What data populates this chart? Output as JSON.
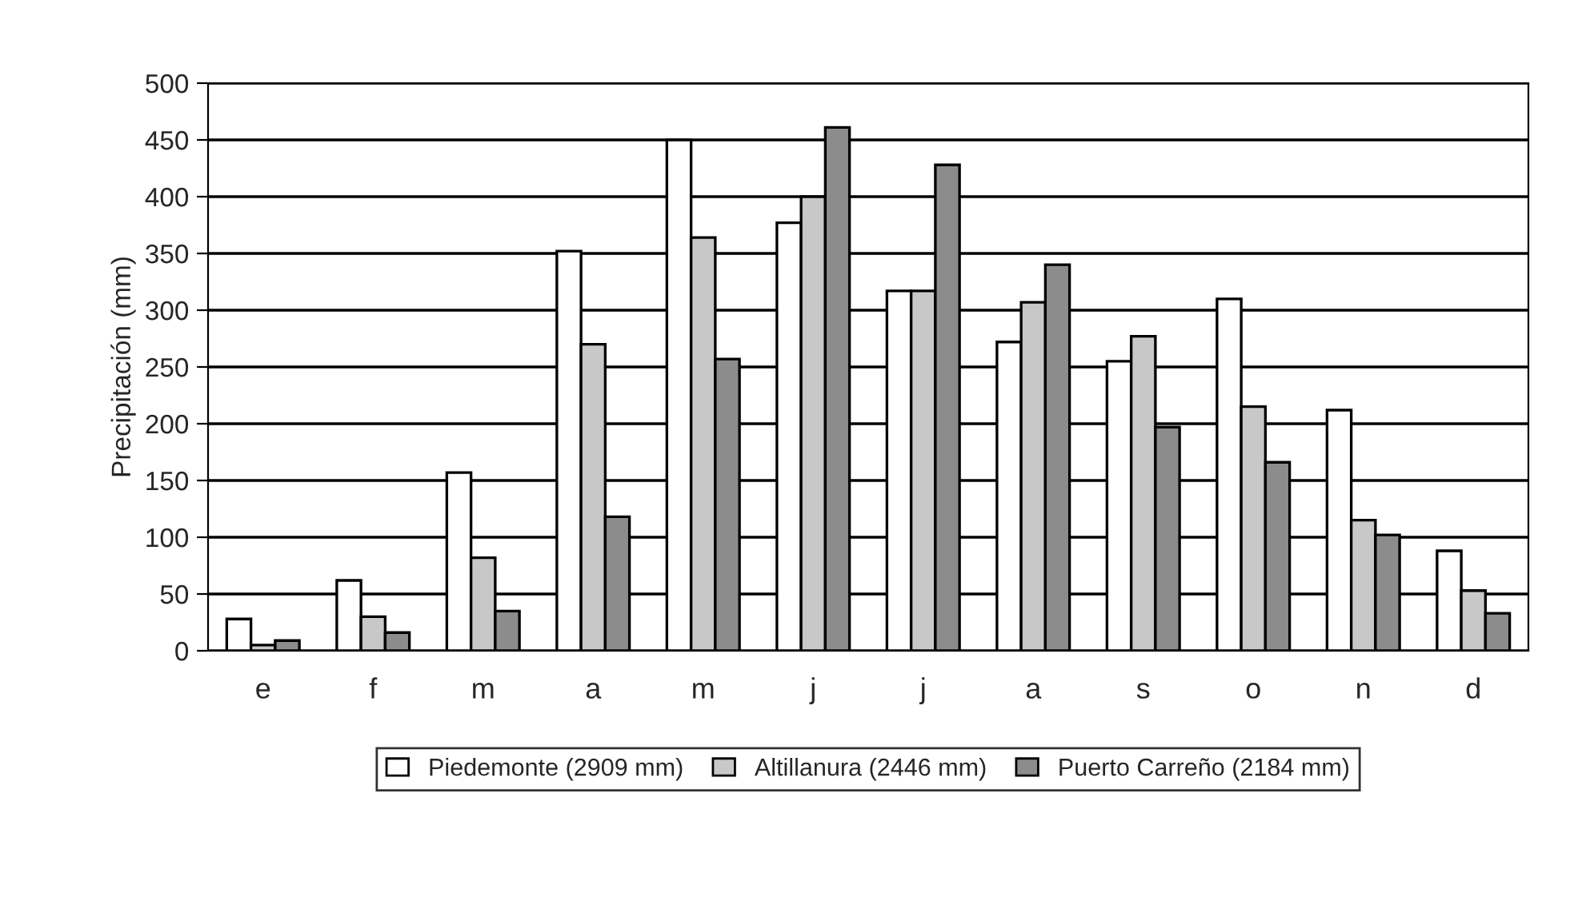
{
  "chart_data": {
    "type": "bar",
    "ylabel": "Precipitación (mm)",
    "categories": [
      "e",
      "f",
      "m",
      "a",
      "m",
      "j",
      "j",
      "a",
      "s",
      "o",
      "n",
      "d"
    ],
    "series": [
      {
        "name": "Piedemonte (2909 mm)",
        "color": "#ffffff",
        "values": [
          28,
          62,
          157,
          352,
          450,
          377,
          317,
          272,
          255,
          310,
          212,
          88
        ]
      },
      {
        "name": "Altillanura (2446 mm)",
        "color": "#c8c8c8",
        "values": [
          5,
          30,
          82,
          270,
          364,
          400,
          317,
          307,
          277,
          215,
          115,
          53
        ]
      },
      {
        "name": "Puerto Carreño (2184 mm)",
        "color": "#8c8c8c",
        "values": [
          9,
          16,
          35,
          118,
          257,
          461,
          428,
          340,
          197,
          166,
          102,
          33
        ]
      }
    ],
    "ylim": [
      0,
      500
    ],
    "yticks": [
      0,
      50,
      100,
      150,
      200,
      250,
      300,
      350,
      400,
      450,
      500
    ],
    "grid": "y",
    "legend": "bottom"
  }
}
